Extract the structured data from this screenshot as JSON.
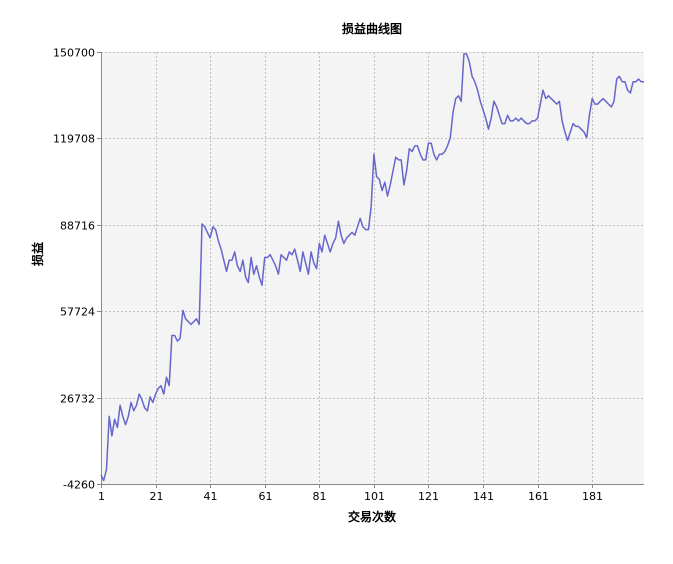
{
  "chart_data": {
    "type": "line",
    "title": "损益曲线图",
    "xlabel": "交易次数",
    "ylabel": "损益",
    "xlim": [
      1,
      200
    ],
    "ylim": [
      -4260,
      150700
    ],
    "x_ticks": [
      1,
      21,
      41,
      61,
      81,
      101,
      121,
      141,
      161,
      181
    ],
    "y_ticks": [
      -4260,
      26732,
      57724,
      88716,
      119708,
      150700
    ],
    "grid": true,
    "legend": "none",
    "colors": {
      "line": "#6666cc",
      "plot_bg": "#f4f4f4",
      "grid": "#c0c0c0"
    },
    "series": [
      {
        "points": [
          [
            1,
            -1000
          ],
          [
            2,
            -3000
          ],
          [
            3,
            1000
          ],
          [
            4,
            20000
          ],
          [
            5,
            13000
          ],
          [
            6,
            19000
          ],
          [
            7,
            16000
          ],
          [
            8,
            24000
          ],
          [
            9,
            20000
          ],
          [
            10,
            17000
          ],
          [
            11,
            20000
          ],
          [
            12,
            25000
          ],
          [
            13,
            22000
          ],
          [
            14,
            24000
          ],
          [
            15,
            28000
          ],
          [
            16,
            26000
          ],
          [
            17,
            23000
          ],
          [
            18,
            22000
          ],
          [
            19,
            27000
          ],
          [
            20,
            25000
          ],
          [
            21,
            28000
          ],
          [
            22,
            30000
          ],
          [
            23,
            31000
          ],
          [
            24,
            28000
          ],
          [
            25,
            34000
          ],
          [
            26,
            31000
          ],
          [
            27,
            49000
          ],
          [
            28,
            49000
          ],
          [
            29,
            47000
          ],
          [
            30,
            48000
          ],
          [
            31,
            58000
          ],
          [
            32,
            55000
          ],
          [
            33,
            54000
          ],
          [
            34,
            53000
          ],
          [
            35,
            54000
          ],
          [
            36,
            55000
          ],
          [
            37,
            53000
          ],
          [
            38,
            89000
          ],
          [
            39,
            88000
          ],
          [
            40,
            86000
          ],
          [
            41,
            84000
          ],
          [
            42,
            88000
          ],
          [
            43,
            87000
          ],
          [
            44,
            83000
          ],
          [
            45,
            80000
          ],
          [
            46,
            76000
          ],
          [
            47,
            72000
          ],
          [
            48,
            76000
          ],
          [
            49,
            76000
          ],
          [
            50,
            79000
          ],
          [
            51,
            74000
          ],
          [
            52,
            72000
          ],
          [
            53,
            76000
          ],
          [
            54,
            70000
          ],
          [
            55,
            68000
          ],
          [
            56,
            77000
          ],
          [
            57,
            71000
          ],
          [
            58,
            74000
          ],
          [
            59,
            70000
          ],
          [
            60,
            67000
          ],
          [
            61,
            77000
          ],
          [
            62,
            77000
          ],
          [
            63,
            78000
          ],
          [
            64,
            76000
          ],
          [
            65,
            74000
          ],
          [
            66,
            71000
          ],
          [
            67,
            78000
          ],
          [
            68,
            77000
          ],
          [
            69,
            76000
          ],
          [
            70,
            79000
          ],
          [
            71,
            78000
          ],
          [
            72,
            80000
          ],
          [
            73,
            76000
          ],
          [
            74,
            72000
          ],
          [
            75,
            79000
          ],
          [
            76,
            75000
          ],
          [
            77,
            71000
          ],
          [
            78,
            79000
          ],
          [
            79,
            75000
          ],
          [
            80,
            73000
          ],
          [
            81,
            82000
          ],
          [
            82,
            79000
          ],
          [
            83,
            85000
          ],
          [
            84,
            82000
          ],
          [
            85,
            79000
          ],
          [
            86,
            82000
          ],
          [
            87,
            84000
          ],
          [
            88,
            90000
          ],
          [
            89,
            85000
          ],
          [
            90,
            82000
          ],
          [
            91,
            84000
          ],
          [
            92,
            85000
          ],
          [
            93,
            86000
          ],
          [
            94,
            85000
          ],
          [
            95,
            88000
          ],
          [
            96,
            91000
          ],
          [
            97,
            88000
          ],
          [
            98,
            87000
          ],
          [
            99,
            87000
          ],
          [
            100,
            95000
          ],
          [
            101,
            114000
          ],
          [
            102,
            106000
          ],
          [
            103,
            105000
          ],
          [
            104,
            101000
          ],
          [
            105,
            104000
          ],
          [
            106,
            99000
          ],
          [
            107,
            103000
          ],
          [
            108,
            108000
          ],
          [
            109,
            113000
          ],
          [
            110,
            112000
          ],
          [
            111,
            112000
          ],
          [
            112,
            103000
          ],
          [
            113,
            108000
          ],
          [
            114,
            116000
          ],
          [
            115,
            115000
          ],
          [
            116,
            117000
          ],
          [
            117,
            117000
          ],
          [
            118,
            114000
          ],
          [
            119,
            112000
          ],
          [
            120,
            112000
          ],
          [
            121,
            118000
          ],
          [
            122,
            118000
          ],
          [
            123,
            114000
          ],
          [
            124,
            112000
          ],
          [
            125,
            114000
          ],
          [
            126,
            114000
          ],
          [
            127,
            115000
          ],
          [
            128,
            117000
          ],
          [
            129,
            120000
          ],
          [
            130,
            129000
          ],
          [
            131,
            134000
          ],
          [
            132,
            135000
          ],
          [
            133,
            133000
          ],
          [
            134,
            150000
          ],
          [
            135,
            150000
          ],
          [
            136,
            147000
          ],
          [
            137,
            142000
          ],
          [
            138,
            140000
          ],
          [
            139,
            137000
          ],
          [
            140,
            133000
          ],
          [
            141,
            130000
          ],
          [
            142,
            127000
          ],
          [
            143,
            123000
          ],
          [
            144,
            127000
          ],
          [
            145,
            133000
          ],
          [
            146,
            131000
          ],
          [
            147,
            128000
          ],
          [
            148,
            125000
          ],
          [
            149,
            125000
          ],
          [
            150,
            128000
          ],
          [
            151,
            126000
          ],
          [
            152,
            126000
          ],
          [
            153,
            127000
          ],
          [
            154,
            126000
          ],
          [
            155,
            127000
          ],
          [
            156,
            126000
          ],
          [
            157,
            125000
          ],
          [
            158,
            125000
          ],
          [
            159,
            126000
          ],
          [
            160,
            126000
          ],
          [
            161,
            127000
          ],
          [
            162,
            132000
          ],
          [
            163,
            137000
          ],
          [
            164,
            134000
          ],
          [
            165,
            135000
          ],
          [
            166,
            134000
          ],
          [
            167,
            133000
          ],
          [
            168,
            132000
          ],
          [
            169,
            133000
          ],
          [
            170,
            126000
          ],
          [
            171,
            122000
          ],
          [
            172,
            119000
          ],
          [
            173,
            122000
          ],
          [
            174,
            125000
          ],
          [
            175,
            124000
          ],
          [
            176,
            124000
          ],
          [
            177,
            123000
          ],
          [
            178,
            122000
          ],
          [
            179,
            120000
          ],
          [
            180,
            128000
          ],
          [
            181,
            134000
          ],
          [
            182,
            132000
          ],
          [
            183,
            132000
          ],
          [
            184,
            133000
          ],
          [
            185,
            134000
          ],
          [
            186,
            133000
          ],
          [
            187,
            132000
          ],
          [
            188,
            131000
          ],
          [
            189,
            133000
          ],
          [
            190,
            141000
          ],
          [
            191,
            142000
          ],
          [
            192,
            140000
          ],
          [
            193,
            140000
          ],
          [
            194,
            137000
          ],
          [
            195,
            136000
          ],
          [
            196,
            140000
          ],
          [
            197,
            140000
          ],
          [
            198,
            141000
          ],
          [
            199,
            140000
          ],
          [
            200,
            140000
          ]
        ]
      }
    ]
  }
}
